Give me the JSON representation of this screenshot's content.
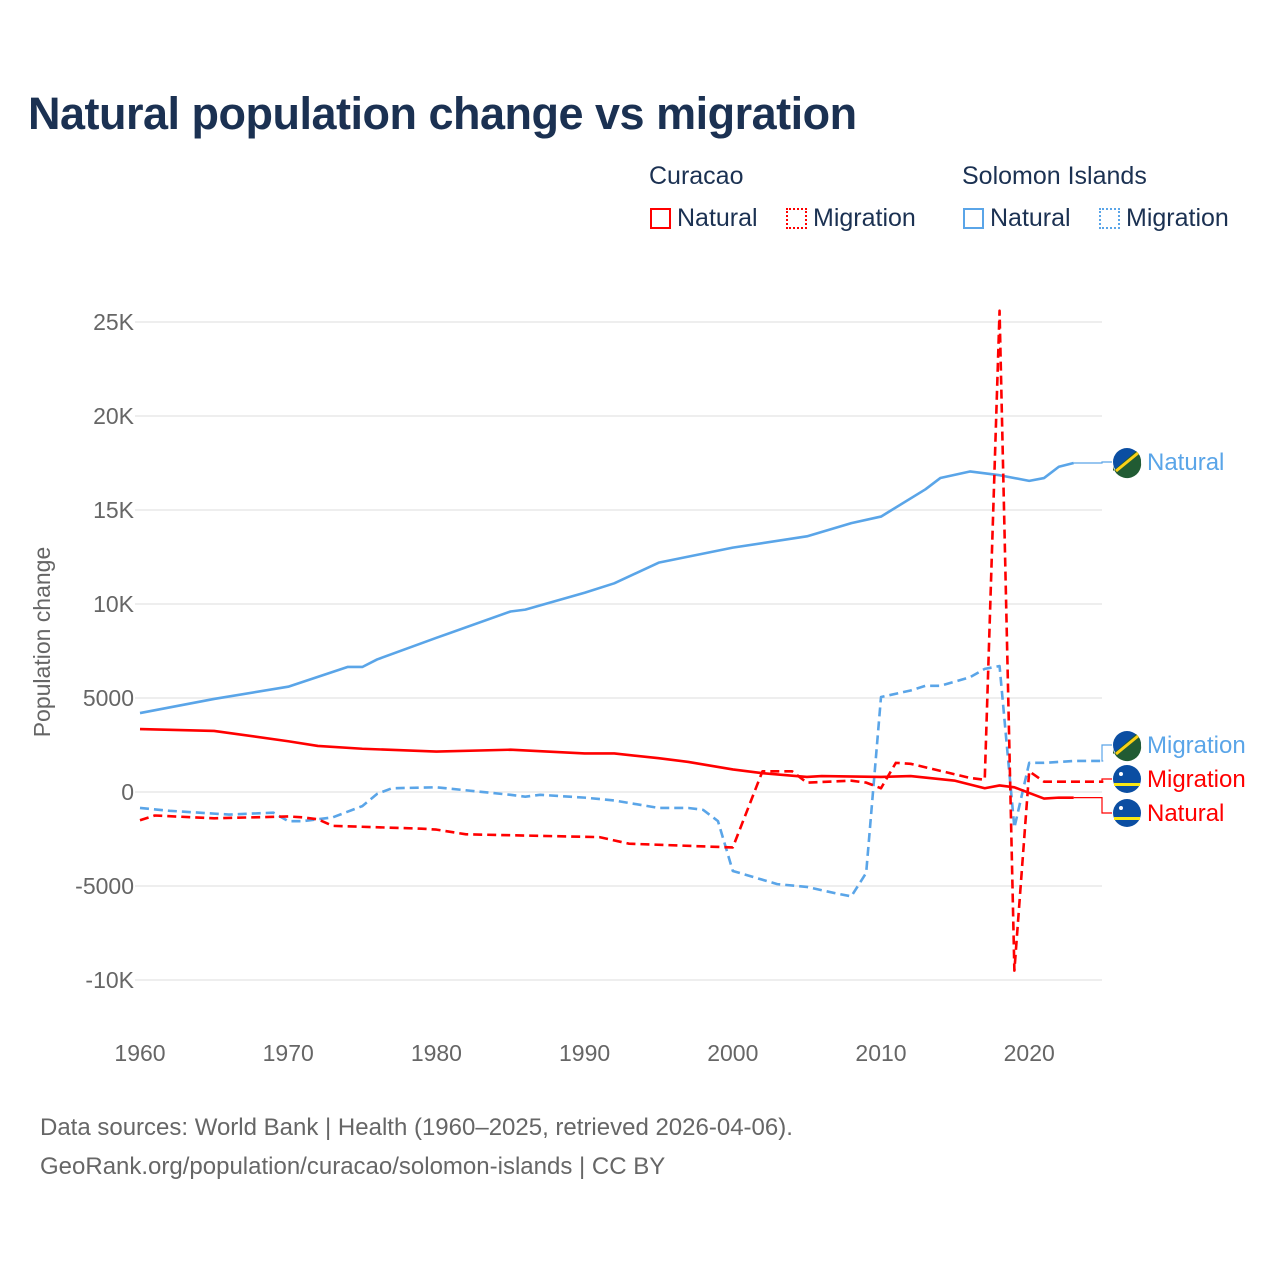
{
  "title": "Natural population change vs migration",
  "legend": {
    "groups": [
      {
        "name": "Curacao",
        "items": [
          "Natural",
          "Migration"
        ]
      },
      {
        "name": "Solomon Islands",
        "items": [
          "Natural",
          "Migration"
        ]
      }
    ]
  },
  "colors": {
    "curacao": "#ff0000",
    "solomon": "#5aa5e8"
  },
  "footer": {
    "line1": "Data sources: World Bank | Health (1960–2025, retrieved 2026-04-06).",
    "line2": "GeoRank.org/population/curacao/solomon-islands | CC BY"
  },
  "chart_data": {
    "type": "line",
    "title": "Natural population change vs migration",
    "xlabel": "",
    "ylabel": "Population change",
    "xlim": [
      1960,
      2025
    ],
    "ylim": [
      -10000,
      25000
    ],
    "x_ticks": [
      "1960",
      "1970",
      "1980",
      "1990",
      "2000",
      "2010",
      "2020"
    ],
    "y_ticks": [
      {
        "v": 25000,
        "label": "25K"
      },
      {
        "v": 20000,
        "label": "20K"
      },
      {
        "v": 15000,
        "label": "15K"
      },
      {
        "v": 10000,
        "label": "10K"
      },
      {
        "v": 5000,
        "label": "5000"
      },
      {
        "v": 0,
        "label": "0"
      },
      {
        "v": -5000,
        "label": "-5000"
      },
      {
        "v": -10000,
        "label": "-10K"
      }
    ],
    "series": [
      {
        "name": "Solomon Islands Natural",
        "country": "solomon",
        "kind": "Natural",
        "dashed": false,
        "end_label": "Natural",
        "points": [
          [
            1960,
            4200
          ],
          [
            1965,
            4950
          ],
          [
            1970,
            5600
          ],
          [
            1974,
            6650
          ],
          [
            1975,
            6650
          ],
          [
            1976,
            7050
          ],
          [
            1980,
            8200
          ],
          [
            1985,
            9600
          ],
          [
            1986,
            9700
          ],
          [
            1990,
            10600
          ],
          [
            1992,
            11100
          ],
          [
            1995,
            12200
          ],
          [
            2000,
            13000
          ],
          [
            2005,
            13600
          ],
          [
            2008,
            14300
          ],
          [
            2010,
            14650
          ],
          [
            2013,
            16100
          ],
          [
            2014,
            16700
          ],
          [
            2016,
            17050
          ],
          [
            2018,
            16850
          ],
          [
            2020,
            16550
          ],
          [
            2021,
            16700
          ],
          [
            2022,
            17300
          ],
          [
            2023,
            17500
          ]
        ]
      },
      {
        "name": "Solomon Islands Migration",
        "country": "solomon",
        "kind": "Migration",
        "dashed": true,
        "end_label": "Migration",
        "points": [
          [
            1960,
            -850
          ],
          [
            1962,
            -1000
          ],
          [
            1965,
            -1150
          ],
          [
            1966,
            -1200
          ],
          [
            1969,
            -1100
          ],
          [
            1970,
            -1550
          ],
          [
            1971,
            -1550
          ],
          [
            1973,
            -1350
          ],
          [
            1975,
            -750
          ],
          [
            1976,
            -100
          ],
          [
            1977,
            200
          ],
          [
            1980,
            250
          ],
          [
            1985,
            -150
          ],
          [
            1986,
            -250
          ],
          [
            1987,
            -150
          ],
          [
            1990,
            -300
          ],
          [
            1992,
            -450
          ],
          [
            1995,
            -850
          ],
          [
            1997,
            -850
          ],
          [
            1998,
            -950
          ],
          [
            1999,
            -1550
          ],
          [
            2000,
            -4200
          ],
          [
            2003,
            -4900
          ],
          [
            2005,
            -5050
          ],
          [
            2007,
            -5400
          ],
          [
            2008,
            -5550
          ],
          [
            2009,
            -4300
          ],
          [
            2010,
            5050
          ],
          [
            2012,
            5400
          ],
          [
            2013,
            5650
          ],
          [
            2014,
            5650
          ],
          [
            2016,
            6100
          ],
          [
            2017,
            6550
          ],
          [
            2018,
            6700
          ],
          [
            2019,
            -1900
          ],
          [
            2020,
            1550
          ],
          [
            2021,
            1550
          ],
          [
            2023,
            1650
          ],
          [
            2024,
            1650
          ],
          [
            2025,
            1650
          ]
        ]
      },
      {
        "name": "Curacao Migration",
        "country": "curacao",
        "kind": "Migration",
        "dashed": true,
        "end_label": "Migration",
        "points": [
          [
            1960,
            -1500
          ],
          [
            1961,
            -1250
          ],
          [
            1965,
            -1400
          ],
          [
            1970,
            -1300
          ],
          [
            1971,
            -1350
          ],
          [
            1972,
            -1450
          ],
          [
            1973,
            -1800
          ],
          [
            1979,
            -1950
          ],
          [
            1980,
            -2000
          ],
          [
            1982,
            -2250
          ],
          [
            1985,
            -2300
          ],
          [
            1991,
            -2400
          ],
          [
            1993,
            -2750
          ],
          [
            2000,
            -2950
          ],
          [
            2002,
            1100
          ],
          [
            2004,
            1100
          ],
          [
            2005,
            500
          ],
          [
            2008,
            600
          ],
          [
            2009,
            500
          ],
          [
            2010,
            200
          ],
          [
            2011,
            1550
          ],
          [
            2012,
            1500
          ],
          [
            2016,
            750
          ],
          [
            2017,
            650
          ],
          [
            2018,
            25600
          ],
          [
            2019,
            -9500
          ],
          [
            2020,
            1100
          ],
          [
            2021,
            550
          ],
          [
            2022,
            550
          ],
          [
            2024,
            550
          ],
          [
            2025,
            550
          ]
        ]
      },
      {
        "name": "Curacao Natural",
        "country": "curacao",
        "kind": "Natural",
        "dashed": false,
        "end_label": "Natural",
        "points": [
          [
            1960,
            3350
          ],
          [
            1965,
            3250
          ],
          [
            1970,
            2700
          ],
          [
            1972,
            2450
          ],
          [
            1975,
            2300
          ],
          [
            1980,
            2150
          ],
          [
            1985,
            2250
          ],
          [
            1990,
            2050
          ],
          [
            1992,
            2050
          ],
          [
            1995,
            1800
          ],
          [
            1997,
            1600
          ],
          [
            2000,
            1200
          ],
          [
            2002,
            1000
          ],
          [
            2005,
            800
          ],
          [
            2006,
            850
          ],
          [
            2010,
            800
          ],
          [
            2012,
            850
          ],
          [
            2015,
            600
          ],
          [
            2017,
            200
          ],
          [
            2018,
            350
          ],
          [
            2019,
            250
          ],
          [
            2020,
            -50
          ],
          [
            2021,
            -350
          ],
          [
            2022,
            -300
          ],
          [
            2023,
            -300
          ]
        ]
      }
    ]
  }
}
